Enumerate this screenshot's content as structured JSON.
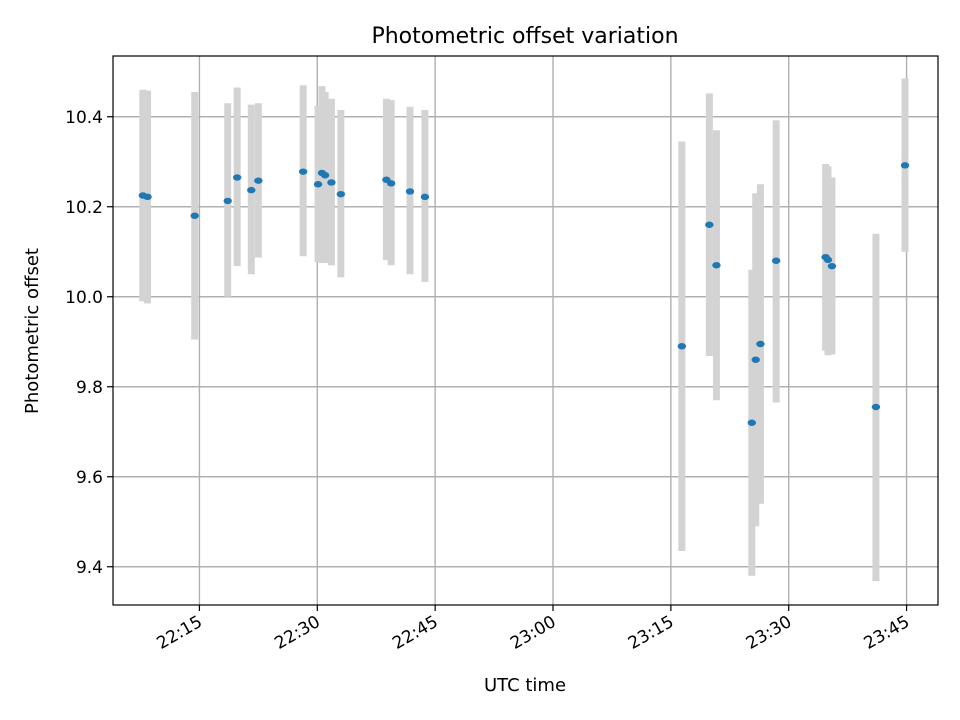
{
  "chart_data": {
    "type": "scatter",
    "title": "Photometric offset variation",
    "xlabel": "UTC time",
    "ylabel": "Photometric offset",
    "xlim": [
      "22:04",
      "23:49"
    ],
    "ylim": [
      9.315,
      10.535
    ],
    "x_ticks": [
      "22:15",
      "22:30",
      "22:45",
      "23:00",
      "23:15",
      "23:30",
      "23:45"
    ],
    "y_ticks": [
      "9.4",
      "9.6",
      "9.8",
      "10.0",
      "10.2",
      "10.4"
    ],
    "grid": true,
    "colors": {
      "point": "#1f77b4",
      "errorbar": "#d3d3d3",
      "grid": "#b0b0b0"
    },
    "series": [
      {
        "points": [
          {
            "time": "22:07:48",
            "y": 10.225,
            "low": 9.99,
            "high": 10.46
          },
          {
            "time": "22:08:24",
            "y": 10.222,
            "low": 9.985,
            "high": 10.458
          },
          {
            "time": "22:14:24",
            "y": 10.18,
            "low": 9.905,
            "high": 10.455
          },
          {
            "time": "22:18:36",
            "y": 10.213,
            "low": 10.0,
            "high": 10.43
          },
          {
            "time": "22:19:48",
            "y": 10.265,
            "low": 10.068,
            "high": 10.465
          },
          {
            "time": "22:21:36",
            "y": 10.237,
            "low": 10.05,
            "high": 10.427
          },
          {
            "time": "22:22:30",
            "y": 10.258,
            "low": 10.087,
            "high": 10.43
          },
          {
            "time": "22:28:12",
            "y": 10.278,
            "low": 10.09,
            "high": 10.47
          },
          {
            "time": "22:30:06",
            "y": 10.25,
            "low": 10.077,
            "high": 10.425
          },
          {
            "time": "22:30:36",
            "y": 10.275,
            "low": 10.075,
            "high": 10.468
          },
          {
            "time": "22:31:00",
            "y": 10.27,
            "low": 10.075,
            "high": 10.455
          },
          {
            "time": "22:31:48",
            "y": 10.254,
            "low": 10.07,
            "high": 10.44
          },
          {
            "time": "22:33:00",
            "y": 10.228,
            "low": 10.043,
            "high": 10.415
          },
          {
            "time": "22:38:48",
            "y": 10.26,
            "low": 10.082,
            "high": 10.44
          },
          {
            "time": "22:39:24",
            "y": 10.252,
            "low": 10.07,
            "high": 10.437
          },
          {
            "time": "22:41:48",
            "y": 10.234,
            "low": 10.05,
            "high": 10.422
          },
          {
            "time": "22:43:42",
            "y": 10.222,
            "low": 10.033,
            "high": 10.415
          },
          {
            "time": "23:16:24",
            "y": 9.89,
            "low": 9.435,
            "high": 10.345
          },
          {
            "time": "23:19:54",
            "y": 10.16,
            "low": 9.868,
            "high": 10.452
          },
          {
            "time": "23:20:48",
            "y": 10.07,
            "low": 9.77,
            "high": 10.37
          },
          {
            "time": "23:25:18",
            "y": 9.72,
            "low": 9.38,
            "high": 10.06
          },
          {
            "time": "23:25:48",
            "y": 9.86,
            "low": 9.49,
            "high": 10.23
          },
          {
            "time": "23:26:24",
            "y": 9.895,
            "low": 9.54,
            "high": 10.25
          },
          {
            "time": "23:28:24",
            "y": 10.08,
            "low": 9.765,
            "high": 10.392
          },
          {
            "time": "23:34:42",
            "y": 10.088,
            "low": 9.88,
            "high": 10.295
          },
          {
            "time": "23:35:00",
            "y": 10.082,
            "low": 9.87,
            "high": 10.29
          },
          {
            "time": "23:35:30",
            "y": 10.068,
            "low": 9.872,
            "high": 10.265
          },
          {
            "time": "23:41:06",
            "y": 9.755,
            "low": 9.368,
            "high": 10.14
          },
          {
            "time": "23:44:48",
            "y": 10.292,
            "low": 10.1,
            "high": 10.485
          }
        ]
      }
    ]
  }
}
